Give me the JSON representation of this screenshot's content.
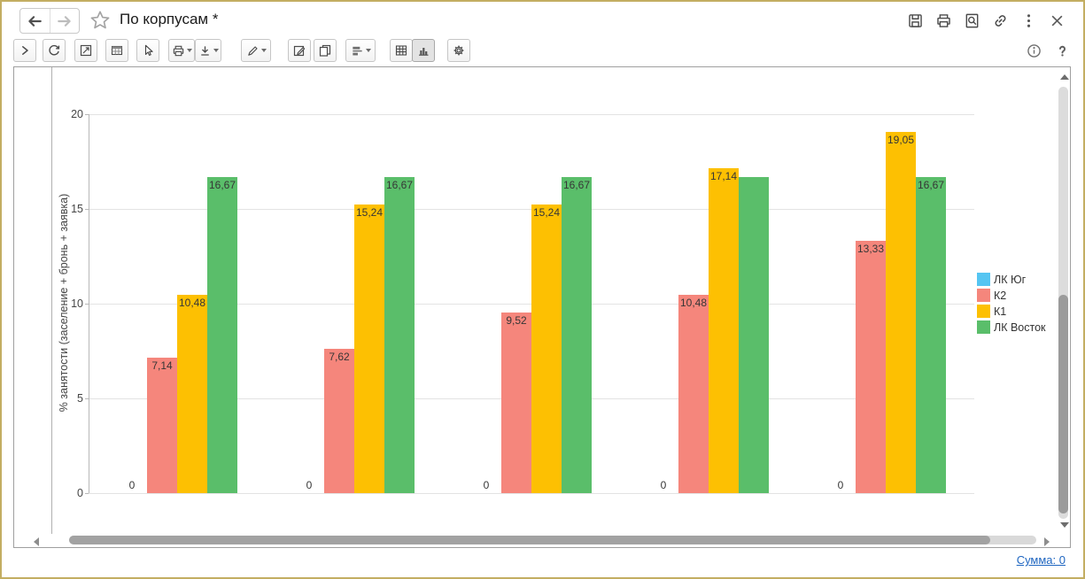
{
  "header": {
    "title": "По корпусам *"
  },
  "toolbar": {
    "icons": {
      "back": "arrow-left",
      "forward": "arrow-right",
      "favorite": "star-outline",
      "save": "floppy-disk",
      "print": "printer",
      "preview": "page-magnifier",
      "get-link": "chain-link",
      "more": "vertical-dots",
      "close": "cross",
      "expand": "chevron-right",
      "refresh": "circular-arrows",
      "scale": "resize-arrow-box",
      "table-properties": "grid-header",
      "pointer": "cursor-arrow",
      "print-doc": "printer-with-dropdown",
      "save-file": "download-with-dropdown",
      "draw": "pencil-with-dropdown",
      "edit": "pencil-square",
      "copy": "two-pages",
      "levels": "stacked-bars-with-dropdown",
      "view-table": "grid",
      "view-chart": "bar-chart",
      "settings": "gear",
      "info": "circle-i",
      "help": "question-mark",
      "scroll-up": "triangle-up",
      "scroll-down": "triangle-down",
      "scroll-left": "triangle-left",
      "scroll-right": "triangle-right"
    }
  },
  "chart_data": {
    "type": "bar",
    "title": "",
    "xlabel": "",
    "ylabel": "% занятости (заселение + бронь + заявка)",
    "ylim": [
      0,
      20
    ],
    "yticks": [
      0,
      5,
      10,
      15,
      20
    ],
    "grid": true,
    "legend_position": "right",
    "group_count": 5,
    "categories": [
      "",
      "",
      "",
      "",
      ""
    ],
    "series": [
      {
        "name": "ЛК Юг",
        "color": "#55c5f2",
        "values": [
          0,
          0,
          0,
          0,
          0
        ],
        "labels": [
          "0",
          "0",
          "0",
          "0",
          "0"
        ]
      },
      {
        "name": "К2",
        "color": "#f5867c",
        "values": [
          7.14,
          7.62,
          9.52,
          10.48,
          13.33
        ],
        "labels": [
          "7,14",
          "7,62",
          "9,52",
          "10,48",
          "13,33"
        ]
      },
      {
        "name": "К1",
        "color": "#fdc002",
        "values": [
          10.48,
          15.24,
          15.24,
          17.14,
          19.05
        ],
        "labels": [
          "10,48",
          "15,24",
          "15,24",
          "17,14",
          "19,05"
        ]
      },
      {
        "name": "ЛК Восток",
        "color": "#5abe6a",
        "values": [
          16.67,
          16.67,
          16.67,
          16.67,
          16.67
        ],
        "labels": [
          "16,67",
          "16,67",
          "16,67",
          null,
          "16,67"
        ]
      }
    ]
  },
  "footer": {
    "sum_link": "Сумма: 0"
  },
  "colors": {
    "window_border": "#c3ae62",
    "grid_line": "#e3e3e3",
    "axis_line": "#b8b8b8",
    "bar_label": "#363636",
    "link": "#1f66c0"
  }
}
